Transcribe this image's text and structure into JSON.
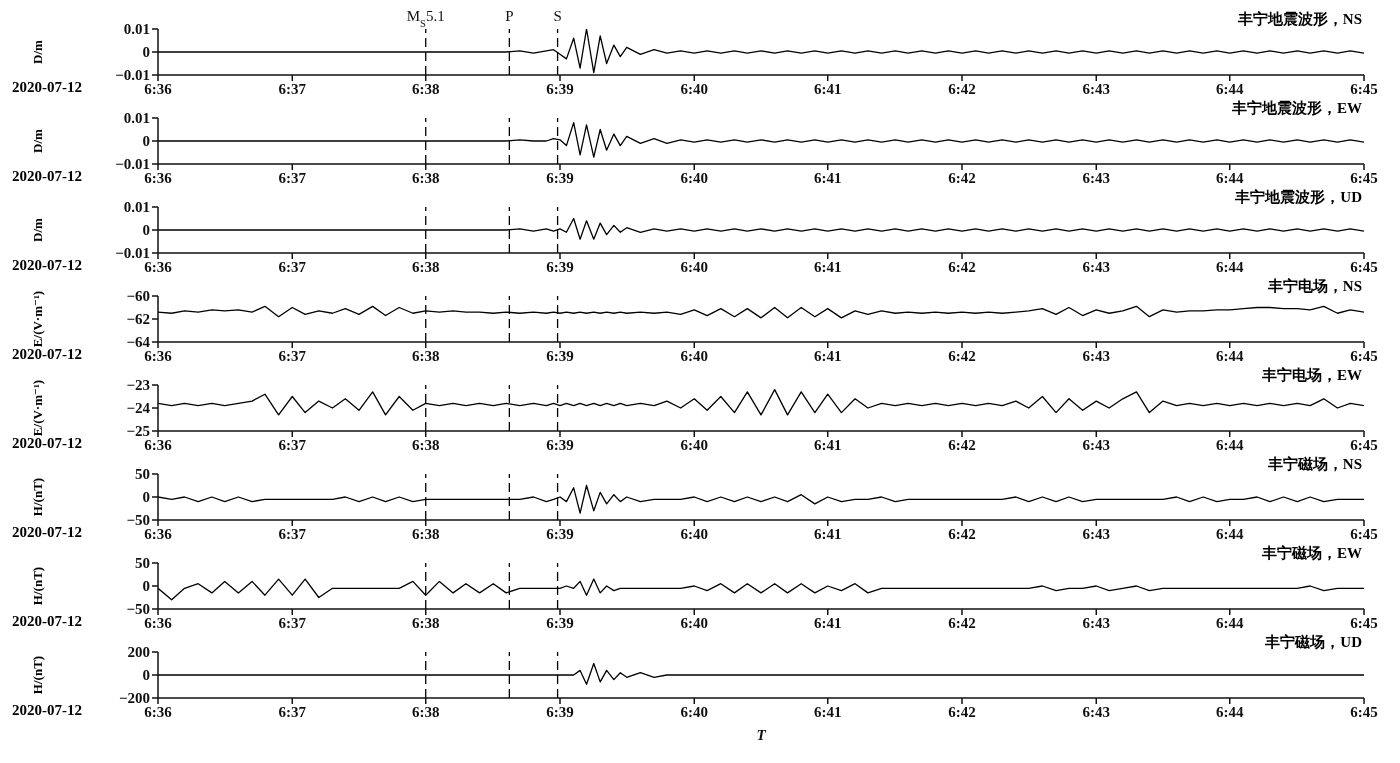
{
  "chart_data": [
    {
      "type": "line",
      "title": "丰宁地震波形，NS",
      "ylabel": "D/m",
      "annotations": [
        "2020-07-12"
      ],
      "x": [
        6.6,
        6.6017,
        6.6033,
        6.605,
        6.6067,
        6.6083,
        6.61,
        6.6117,
        6.6133,
        6.615,
        6.6167,
        6.6183,
        6.62,
        6.6217,
        6.6233,
        6.625,
        6.6267,
        6.6283,
        6.63,
        6.6317,
        6.6333,
        6.635,
        6.6367,
        6.6383,
        6.64,
        6.6417,
        6.6433,
        6.645,
        6.6467,
        6.6483,
        6.6492,
        6.65,
        6.6508,
        6.6517,
        6.6525,
        6.6533,
        6.6542,
        6.655,
        6.6558,
        6.6567,
        6.6575,
        6.6583,
        6.66,
        6.6617,
        6.6633,
        6.665,
        6.6667,
        6.6683,
        6.67,
        6.6717,
        6.6733,
        6.675,
        6.6767,
        6.6783,
        6.68,
        6.6817,
        6.6833,
        6.685,
        6.6867,
        6.6883,
        6.69,
        6.6917,
        6.6933,
        6.695,
        6.6967,
        6.6983,
        6.7,
        6.7017,
        6.7033,
        6.705,
        6.7067,
        6.7083,
        6.71,
        6.7117,
        6.7133,
        6.715,
        6.7167,
        6.7183,
        6.72,
        6.7217,
        6.7233,
        6.725,
        6.7267,
        6.7283,
        6.73,
        6.7317,
        6.7333,
        6.735,
        6.7367,
        6.7383,
        6.74,
        6.7417,
        6.7433,
        6.745,
        6.7467,
        6.7483,
        6.75
      ],
      "series": [
        {
          "color": "#000000",
          "values": [
            0,
            0,
            0,
            0,
            0,
            0,
            0,
            0,
            0,
            0,
            0,
            0,
            0,
            0,
            0,
            0,
            0,
            0,
            0,
            0,
            0,
            0,
            0,
            0,
            0,
            0,
            0,
            0.0005,
            -0.0005,
            0.0005,
            0.001,
            -0.001,
            -0.003,
            0.006,
            -0.007,
            0.01,
            -0.009,
            0.007,
            -0.005,
            0.003,
            -0.002,
            0.002,
            -0.001,
            0.001,
            -0.0005,
            0.0005,
            -0.0005,
            0.0005,
            -0.0005,
            0.0005,
            -0.0005,
            0.0005,
            -0.0005,
            0.0005,
            -0.0005,
            0.0005,
            -0.0005,
            0.0005,
            -0.0005,
            0.0005,
            -0.0005,
            0.0005,
            -0.0005,
            0.0005,
            -0.0005,
            0.0005,
            -0.0005,
            0.0005,
            -0.0005,
            0.0005,
            -0.0005,
            0.0005,
            -0.0005,
            0.0005,
            -0.0005,
            0.0005,
            -0.0005,
            0.0005,
            -0.0005,
            0.0005,
            -0.0005,
            0.0005,
            -0.0005,
            0.0005,
            -0.0005,
            0.0005,
            -0.0005,
            0.0005,
            -0.0005,
            0.0005,
            -0.0005,
            0.0005,
            -0.0005,
            0.0005,
            -0.0005,
            0.0005,
            -0.0005
          ]
        }
      ],
      "xlim": [
        6.6,
        6.75
      ],
      "xticks": [
        {
          "value": 6.6,
          "label": "6:36"
        },
        {
          "value": 6.6167,
          "label": "6:37"
        },
        {
          "value": 6.6333,
          "label": "6:38"
        },
        {
          "value": 6.65,
          "label": "6:39"
        },
        {
          "value": 6.6667,
          "label": "6:40"
        },
        {
          "value": 6.6833,
          "label": "6:41"
        },
        {
          "value": 6.7,
          "label": "6:42"
        },
        {
          "value": 6.7167,
          "label": "6:43"
        },
        {
          "value": 6.7333,
          "label": "6:44"
        },
        {
          "value": 6.75,
          "label": "6:45"
        }
      ],
      "ylim": [
        -0.01,
        0.01
      ],
      "yticks": [
        -0.01,
        0,
        0.01
      ],
      "ref_lines": [
        {
          "axis": "x",
          "value": 6.6333,
          "label": "M$_{S}$5.1",
          "color": "#000000",
          "line_style": "dashed"
        },
        {
          "axis": "x",
          "value": 6.6437,
          "label": "P",
          "color": "#000000",
          "line_style": "dashed"
        },
        {
          "axis": "x",
          "value": 6.6497,
          "label": "S",
          "color": "#000000",
          "line_style": "dashed"
        }
      ]
    },
    {
      "type": "line",
      "title": "丰宁地震波形，EW",
      "ylabel": "D/m",
      "annotations": [
        "2020-07-12"
      ],
      "x": [
        6.6,
        6.6017,
        6.6033,
        6.605,
        6.6067,
        6.6083,
        6.61,
        6.6117,
        6.6133,
        6.615,
        6.6167,
        6.6183,
        6.62,
        6.6217,
        6.6233,
        6.625,
        6.6267,
        6.6283,
        6.63,
        6.6317,
        6.6333,
        6.635,
        6.6367,
        6.6383,
        6.64,
        6.6417,
        6.6433,
        6.645,
        6.6467,
        6.6483,
        6.6492,
        6.65,
        6.6508,
        6.6517,
        6.6525,
        6.6533,
        6.6542,
        6.655,
        6.6558,
        6.6567,
        6.6575,
        6.6583,
        6.66,
        6.6617,
        6.6633,
        6.665,
        6.6667,
        6.6683,
        6.67,
        6.6717,
        6.6733,
        6.675,
        6.6767,
        6.6783,
        6.68,
        6.6817,
        6.6833,
        6.685,
        6.6867,
        6.6883,
        6.69,
        6.6917,
        6.6933,
        6.695,
        6.6967,
        6.6983,
        6.7,
        6.7017,
        6.7033,
        6.705,
        6.7067,
        6.7083,
        6.71,
        6.7117,
        6.7133,
        6.715,
        6.7167,
        6.7183,
        6.72,
        6.7217,
        6.7233,
        6.725,
        6.7267,
        6.7283,
        6.73,
        6.7317,
        6.7333,
        6.735,
        6.7367,
        6.7383,
        6.74,
        6.7417,
        6.7433,
        6.745,
        6.7467,
        6.7483,
        6.75
      ],
      "series": [
        {
          "color": "#000000",
          "values": [
            0,
            0,
            0,
            0,
            0,
            0,
            0,
            0,
            0,
            0,
            0,
            0,
            0,
            0,
            0,
            0,
            0,
            0,
            0,
            0,
            0,
            0,
            0,
            0,
            0,
            0,
            0,
            0.0005,
            0,
            0,
            0.001,
            0.0005,
            -0.002,
            0.008,
            -0.006,
            0.007,
            -0.007,
            0.005,
            -0.004,
            0.003,
            -0.002,
            0.002,
            -0.001,
            0.001,
            -0.001,
            0.0005,
            -0.0005,
            0.0005,
            -0.0005,
            0.0005,
            -0.0005,
            0.0005,
            -0.0005,
            0.0005,
            -0.0005,
            0.0005,
            -0.0005,
            0.0005,
            -0.0005,
            0.0005,
            -0.0005,
            0.0005,
            -0.0005,
            0.0005,
            -0.0005,
            0.0005,
            -0.0005,
            0.0005,
            -0.0005,
            0.0005,
            -0.0005,
            0.0005,
            -0.0005,
            0.0005,
            -0.0005,
            0.0005,
            -0.0005,
            0.0005,
            -0.0005,
            0.0005,
            -0.0005,
            0.0005,
            -0.0005,
            0.0005,
            -0.0005,
            0.0005,
            -0.0005,
            0.0005,
            -0.0005,
            0.0005,
            -0.0005,
            0.0005,
            -0.0005,
            0.0005,
            -0.0005,
            0.0005,
            -0.0005
          ]
        }
      ],
      "xlim": [
        6.6,
        6.75
      ],
      "xticks": [
        {
          "value": 6.6,
          "label": "6:36"
        },
        {
          "value": 6.6167,
          "label": "6:37"
        },
        {
          "value": 6.6333,
          "label": "6:38"
        },
        {
          "value": 6.65,
          "label": "6:39"
        },
        {
          "value": 6.6667,
          "label": "6:40"
        },
        {
          "value": 6.6833,
          "label": "6:41"
        },
        {
          "value": 6.7,
          "label": "6:42"
        },
        {
          "value": 6.7167,
          "label": "6:43"
        },
        {
          "value": 6.7333,
          "label": "6:44"
        },
        {
          "value": 6.75,
          "label": "6:45"
        }
      ],
      "ylim": [
        -0.01,
        0.01
      ],
      "yticks": [
        -0.01,
        0,
        0.01
      ],
      "ref_lines": [
        {
          "axis": "x",
          "value": 6.6333,
          "color": "#000000",
          "line_style": "dashed"
        },
        {
          "axis": "x",
          "value": 6.6437,
          "color": "#000000",
          "line_style": "dashed"
        },
        {
          "axis": "x",
          "value": 6.6497,
          "color": "#000000",
          "line_style": "dashed"
        }
      ]
    },
    {
      "type": "line",
      "title": "丰宁地震波形，UD",
      "ylabel": "D/m",
      "annotations": [
        "2020-07-12"
      ],
      "x": [
        6.6,
        6.6017,
        6.6033,
        6.605,
        6.6067,
        6.6083,
        6.61,
        6.6117,
        6.6133,
        6.615,
        6.6167,
        6.6183,
        6.62,
        6.6217,
        6.6233,
        6.625,
        6.6267,
        6.6283,
        6.63,
        6.6317,
        6.6333,
        6.635,
        6.6367,
        6.6383,
        6.64,
        6.6417,
        6.6433,
        6.645,
        6.6467,
        6.6483,
        6.6492,
        6.65,
        6.6508,
        6.6517,
        6.6525,
        6.6533,
        6.6542,
        6.655,
        6.6558,
        6.6567,
        6.6575,
        6.6583,
        6.66,
        6.6617,
        6.6633,
        6.665,
        6.6667,
        6.6683,
        6.67,
        6.6717,
        6.6733,
        6.675,
        6.6767,
        6.6783,
        6.68,
        6.6817,
        6.6833,
        6.685,
        6.6867,
        6.6883,
        6.69,
        6.6917,
        6.6933,
        6.695,
        6.6967,
        6.6983,
        6.7,
        6.7017,
        6.7033,
        6.705,
        6.7067,
        6.7083,
        6.71,
        6.7117,
        6.7133,
        6.715,
        6.7167,
        6.7183,
        6.72,
        6.7217,
        6.7233,
        6.725,
        6.7267,
        6.7283,
        6.73,
        6.7317,
        6.7333,
        6.735,
        6.7367,
        6.7383,
        6.74,
        6.7417,
        6.7433,
        6.745,
        6.7467,
        6.7483,
        6.75
      ],
      "series": [
        {
          "color": "#000000",
          "values": [
            0,
            0,
            0,
            0,
            0,
            0,
            0,
            0,
            0,
            0,
            0,
            0,
            0,
            0,
            0,
            0,
            0,
            0,
            0,
            0,
            0,
            0,
            0,
            0,
            0,
            0,
            0,
            0.0005,
            -0.0005,
            0.0005,
            -0.0005,
            0.0005,
            -0.001,
            0.005,
            -0.004,
            0.004,
            -0.004,
            0.003,
            -0.002,
            0.002,
            -0.001,
            0.001,
            -0.001,
            0.0005,
            -0.0005,
            0.0005,
            -0.0005,
            0.0005,
            -0.0005,
            0.0005,
            -0.0005,
            0.0005,
            -0.0005,
            0.0005,
            -0.0005,
            0.0005,
            -0.0005,
            0.0005,
            -0.0005,
            0.0005,
            -0.0005,
            0.0005,
            -0.0005,
            0.0005,
            -0.0005,
            0.0005,
            -0.0005,
            0.0005,
            -0.0005,
            0.0005,
            -0.0005,
            0.0005,
            -0.0005,
            0.0005,
            -0.0005,
            0.0005,
            -0.0005,
            0.0005,
            -0.0005,
            0.0005,
            -0.0005,
            0.0005,
            -0.0005,
            0.0005,
            -0.0005,
            0.0005,
            -0.0005,
            0.0005,
            -0.0005,
            0.0005,
            -0.0005,
            0.0005,
            -0.0005,
            0.0005,
            -0.0005,
            0.0005,
            -0.0005
          ]
        }
      ],
      "xlim": [
        6.6,
        6.75
      ],
      "xticks": [
        {
          "value": 6.6,
          "label": "6:36"
        },
        {
          "value": 6.6167,
          "label": "6:37"
        },
        {
          "value": 6.6333,
          "label": "6:38"
        },
        {
          "value": 6.65,
          "label": "6:39"
        },
        {
          "value": 6.6667,
          "label": "6:40"
        },
        {
          "value": 6.6833,
          "label": "6:41"
        },
        {
          "value": 6.7,
          "label": "6:42"
        },
        {
          "value": 6.7167,
          "label": "6:43"
        },
        {
          "value": 6.7333,
          "label": "6:44"
        },
        {
          "value": 6.75,
          "label": "6:45"
        }
      ],
      "ylim": [
        -0.01,
        0.01
      ],
      "yticks": [
        -0.01,
        0,
        0.01
      ],
      "ref_lines": [
        {
          "axis": "x",
          "value": 6.6333,
          "color": "#000000",
          "line_style": "dashed"
        },
        {
          "axis": "x",
          "value": 6.6437,
          "color": "#000000",
          "line_style": "dashed"
        },
        {
          "axis": "x",
          "value": 6.6497,
          "color": "#000000",
          "line_style": "dashed"
        }
      ]
    },
    {
      "type": "line",
      "title": "丰宁电场，NS",
      "ylabel": "E/(V·m⁻¹)",
      "annotations": [
        "2020-07-12"
      ],
      "x": [
        6.6,
        6.6017,
        6.6033,
        6.605,
        6.6067,
        6.6083,
        6.61,
        6.6117,
        6.6133,
        6.615,
        6.6167,
        6.6183,
        6.62,
        6.6217,
        6.6233,
        6.625,
        6.6267,
        6.6283,
        6.63,
        6.6317,
        6.6333,
        6.635,
        6.6367,
        6.6383,
        6.64,
        6.6417,
        6.6433,
        6.645,
        6.6467,
        6.6483,
        6.6492,
        6.65,
        6.6508,
        6.6517,
        6.6525,
        6.6533,
        6.6542,
        6.655,
        6.6558,
        6.6567,
        6.6575,
        6.6583,
        6.66,
        6.6617,
        6.6633,
        6.665,
        6.6667,
        6.6683,
        6.67,
        6.6717,
        6.6733,
        6.675,
        6.6767,
        6.6783,
        6.68,
        6.6817,
        6.6833,
        6.685,
        6.6867,
        6.6883,
        6.69,
        6.6917,
        6.6933,
        6.695,
        6.6967,
        6.6983,
        6.7,
        6.7017,
        6.7033,
        6.705,
        6.7067,
        6.7083,
        6.71,
        6.7117,
        6.7133,
        6.715,
        6.7167,
        6.7183,
        6.72,
        6.7217,
        6.7233,
        6.725,
        6.7267,
        6.7283,
        6.73,
        6.7317,
        6.7333,
        6.735,
        6.7367,
        6.7383,
        6.74,
        6.7417,
        6.7433,
        6.745,
        6.7467,
        6.7483,
        6.75
      ],
      "series": [
        {
          "color": "#000000",
          "values": [
            -61.4,
            -61.5,
            -61.3,
            -61.4,
            -61.2,
            -61.3,
            -61.2,
            -61.4,
            -60.9,
            -61.8,
            -61.0,
            -61.6,
            -61.3,
            -61.5,
            -61.1,
            -61.6,
            -60.9,
            -61.7,
            -61.0,
            -61.5,
            -61.3,
            -61.4,
            -61.3,
            -61.4,
            -61.4,
            -61.5,
            -61.4,
            -61.5,
            -61.4,
            -61.5,
            -61.4,
            -61.5,
            -61.4,
            -61.5,
            -61.4,
            -61.5,
            -61.4,
            -61.5,
            -61.4,
            -61.5,
            -61.4,
            -61.5,
            -61.4,
            -61.5,
            -61.4,
            -61.6,
            -61.2,
            -61.7,
            -61.1,
            -61.8,
            -61.1,
            -61.9,
            -61.0,
            -61.9,
            -61.0,
            -61.8,
            -61.1,
            -61.9,
            -61.3,
            -61.6,
            -61.3,
            -61.5,
            -61.4,
            -61.5,
            -61.4,
            -61.5,
            -61.4,
            -61.5,
            -61.4,
            -61.5,
            -61.4,
            -61.3,
            -61.1,
            -61.6,
            -61.0,
            -61.7,
            -61.2,
            -61.5,
            -61.3,
            -60.9,
            -61.8,
            -61.2,
            -61.4,
            -61.3,
            -61.3,
            -61.2,
            -61.2,
            -61.1,
            -61.0,
            -61.0,
            -61.1,
            -61.1,
            -61.2,
            -60.9,
            -61.5,
            -61.2,
            -61.4
          ]
        }
      ],
      "xlim": [
        6.6,
        6.75
      ],
      "xticks": [
        {
          "value": 6.6,
          "label": "6:36"
        },
        {
          "value": 6.6167,
          "label": "6:37"
        },
        {
          "value": 6.6333,
          "label": "6:38"
        },
        {
          "value": 6.65,
          "label": "6:39"
        },
        {
          "value": 6.6667,
          "label": "6:40"
        },
        {
          "value": 6.6833,
          "label": "6:41"
        },
        {
          "value": 6.7,
          "label": "6:42"
        },
        {
          "value": 6.7167,
          "label": "6:43"
        },
        {
          "value": 6.7333,
          "label": "6:44"
        },
        {
          "value": 6.75,
          "label": "6:45"
        }
      ],
      "ylim": [
        -64,
        -60
      ],
      "yticks": [
        -64,
        -62,
        -60
      ],
      "ref_lines": [
        {
          "axis": "x",
          "value": 6.6333,
          "color": "#000000",
          "line_style": "dashed"
        },
        {
          "axis": "x",
          "value": 6.6437,
          "color": "#000000",
          "line_style": "dashed"
        },
        {
          "axis": "x",
          "value": 6.6497,
          "color": "#000000",
          "line_style": "dashed"
        }
      ]
    },
    {
      "type": "line",
      "title": "丰宁电场，EW",
      "ylabel": "E/(V·m⁻¹)",
      "annotations": [
        "2020-07-12"
      ],
      "x": [
        6.6,
        6.6017,
        6.6033,
        6.605,
        6.6067,
        6.6083,
        6.61,
        6.6117,
        6.6133,
        6.615,
        6.6167,
        6.6183,
        6.62,
        6.6217,
        6.6233,
        6.625,
        6.6267,
        6.6283,
        6.63,
        6.6317,
        6.6333,
        6.635,
        6.6367,
        6.6383,
        6.64,
        6.6417,
        6.6433,
        6.645,
        6.6467,
        6.6483,
        6.6492,
        6.65,
        6.6508,
        6.6517,
        6.6525,
        6.6533,
        6.6542,
        6.655,
        6.6558,
        6.6567,
        6.6575,
        6.6583,
        6.66,
        6.6617,
        6.6633,
        6.665,
        6.6667,
        6.6683,
        6.67,
        6.6717,
        6.6733,
        6.675,
        6.6767,
        6.6783,
        6.68,
        6.6817,
        6.6833,
        6.685,
        6.6867,
        6.6883,
        6.69,
        6.6917,
        6.6933,
        6.695,
        6.6967,
        6.6983,
        6.7,
        6.7017,
        6.7033,
        6.705,
        6.7067,
        6.7083,
        6.71,
        6.7117,
        6.7133,
        6.715,
        6.7167,
        6.7183,
        6.72,
        6.7217,
        6.7233,
        6.725,
        6.7267,
        6.7283,
        6.73,
        6.7317,
        6.7333,
        6.735,
        6.7367,
        6.7383,
        6.74,
        6.7417,
        6.7433,
        6.745,
        6.7467,
        6.7483,
        6.75
      ],
      "series": [
        {
          "color": "#000000",
          "values": [
            -23.8,
            -23.9,
            -23.8,
            -23.9,
            -23.8,
            -23.9,
            -23.8,
            -23.7,
            -23.4,
            -24.3,
            -23.5,
            -24.2,
            -23.7,
            -24.0,
            -23.6,
            -24.1,
            -23.3,
            -24.3,
            -23.5,
            -24.1,
            -23.8,
            -23.9,
            -23.8,
            -23.9,
            -23.8,
            -23.9,
            -23.8,
            -23.9,
            -23.8,
            -23.9,
            -23.8,
            -23.9,
            -23.8,
            -23.9,
            -23.8,
            -23.9,
            -23.8,
            -23.9,
            -23.8,
            -23.9,
            -23.8,
            -23.9,
            -23.8,
            -23.9,
            -23.7,
            -24.0,
            -23.6,
            -24.1,
            -23.5,
            -24.2,
            -23.3,
            -24.3,
            -23.2,
            -24.3,
            -23.3,
            -24.2,
            -23.4,
            -24.2,
            -23.6,
            -24.0,
            -23.8,
            -23.9,
            -23.8,
            -23.9,
            -23.8,
            -23.9,
            -23.8,
            -23.9,
            -23.8,
            -23.9,
            -23.7,
            -24.0,
            -23.5,
            -24.2,
            -23.6,
            -24.1,
            -23.7,
            -24.0,
            -23.6,
            -23.3,
            -24.2,
            -23.7,
            -23.9,
            -23.8,
            -23.9,
            -23.8,
            -23.9,
            -23.8,
            -23.9,
            -23.8,
            -23.9,
            -23.8,
            -23.9,
            -23.6,
            -24.0,
            -23.8,
            -23.9
          ]
        }
      ],
      "xlim": [
        6.6,
        6.75
      ],
      "xticks": [
        {
          "value": 6.6,
          "label": "6:36"
        },
        {
          "value": 6.6167,
          "label": "6:37"
        },
        {
          "value": 6.6333,
          "label": "6:38"
        },
        {
          "value": 6.65,
          "label": "6:39"
        },
        {
          "value": 6.6667,
          "label": "6:40"
        },
        {
          "value": 6.6833,
          "label": "6:41"
        },
        {
          "value": 6.7,
          "label": "6:42"
        },
        {
          "value": 6.7167,
          "label": "6:43"
        },
        {
          "value": 6.7333,
          "label": "6:44"
        },
        {
          "value": 6.75,
          "label": "6:45"
        }
      ],
      "ylim": [
        -25,
        -23
      ],
      "yticks": [
        -25,
        -24,
        -23
      ],
      "ref_lines": [
        {
          "axis": "x",
          "value": 6.6333,
          "color": "#000000",
          "line_style": "dashed"
        },
        {
          "axis": "x",
          "value": 6.6437,
          "color": "#000000",
          "line_style": "dashed"
        },
        {
          "axis": "x",
          "value": 6.6497,
          "color": "#000000",
          "line_style": "dashed"
        }
      ]
    },
    {
      "type": "line",
      "title": "丰宁磁场，NS",
      "ylabel": "H/(nT)",
      "annotations": [
        "2020-07-12"
      ],
      "x": [
        6.6,
        6.6017,
        6.6033,
        6.605,
        6.6067,
        6.6083,
        6.61,
        6.6117,
        6.6133,
        6.615,
        6.6167,
        6.6183,
        6.62,
        6.6217,
        6.6233,
        6.625,
        6.6267,
        6.6283,
        6.63,
        6.6317,
        6.6333,
        6.635,
        6.6367,
        6.6383,
        6.64,
        6.6417,
        6.6433,
        6.645,
        6.6467,
        6.6483,
        6.6492,
        6.65,
        6.6508,
        6.6517,
        6.6525,
        6.6533,
        6.6542,
        6.655,
        6.6558,
        6.6567,
        6.6575,
        6.6583,
        6.66,
        6.6617,
        6.6633,
        6.665,
        6.6667,
        6.6683,
        6.67,
        6.6717,
        6.6733,
        6.675,
        6.6767,
        6.6783,
        6.68,
        6.6817,
        6.6833,
        6.685,
        6.6867,
        6.6883,
        6.69,
        6.6917,
        6.6933,
        6.695,
        6.6967,
        6.6983,
        6.7,
        6.7017,
        6.7033,
        6.705,
        6.7067,
        6.7083,
        6.71,
        6.7117,
        6.7133,
        6.715,
        6.7167,
        6.7183,
        6.72,
        6.7217,
        6.7233,
        6.725,
        6.7267,
        6.7283,
        6.73,
        6.7317,
        6.7333,
        6.735,
        6.7367,
        6.7383,
        6.74,
        6.7417,
        6.7433,
        6.745,
        6.7467,
        6.7483,
        6.75
      ],
      "series": [
        {
          "color": "#000000",
          "values": [
            0,
            -5,
            0,
            -10,
            0,
            -10,
            0,
            -10,
            -5,
            -5,
            -5,
            -5,
            -5,
            -5,
            0,
            -10,
            0,
            -10,
            0,
            -10,
            -5,
            -5,
            -5,
            -5,
            -5,
            -5,
            -5,
            -5,
            0,
            -10,
            -5,
            0,
            -10,
            20,
            -35,
            25,
            -30,
            10,
            -15,
            5,
            -10,
            0,
            -10,
            -5,
            -5,
            -5,
            0,
            -10,
            0,
            -10,
            0,
            -10,
            0,
            -10,
            5,
            -15,
            0,
            -10,
            -5,
            -5,
            0,
            -10,
            -5,
            -5,
            -5,
            -5,
            -5,
            -5,
            -5,
            -5,
            0,
            -10,
            0,
            -10,
            0,
            -10,
            -5,
            -5,
            -5,
            -5,
            -5,
            -5,
            0,
            -10,
            0,
            -10,
            -5,
            -5,
            0,
            -10,
            0,
            -10,
            0,
            -10,
            -5,
            -5,
            -5
          ]
        }
      ],
      "xlim": [
        6.6,
        6.75
      ],
      "xticks": [
        {
          "value": 6.6,
          "label": "6:36"
        },
        {
          "value": 6.6167,
          "label": "6:37"
        },
        {
          "value": 6.6333,
          "label": "6:38"
        },
        {
          "value": 6.65,
          "label": "6:39"
        },
        {
          "value": 6.6667,
          "label": "6:40"
        },
        {
          "value": 6.6833,
          "label": "6:41"
        },
        {
          "value": 6.7,
          "label": "6:42"
        },
        {
          "value": 6.7167,
          "label": "6:43"
        },
        {
          "value": 6.7333,
          "label": "6:44"
        },
        {
          "value": 6.75,
          "label": "6:45"
        }
      ],
      "ylim": [
        -50,
        50
      ],
      "yticks": [
        -50,
        0,
        50
      ],
      "ref_lines": [
        {
          "axis": "x",
          "value": 6.6333,
          "color": "#000000",
          "line_style": "dashed"
        },
        {
          "axis": "x",
          "value": 6.6437,
          "color": "#000000",
          "line_style": "dashed"
        },
        {
          "axis": "x",
          "value": 6.6497,
          "color": "#000000",
          "line_style": "dashed"
        }
      ]
    },
    {
      "type": "line",
      "title": "丰宁磁场，EW",
      "ylabel": "H/(nT)",
      "annotations": [
        "2020-07-12"
      ],
      "x": [
        6.6,
        6.6017,
        6.6033,
        6.605,
        6.6067,
        6.6083,
        6.61,
        6.6117,
        6.6133,
        6.615,
        6.6167,
        6.6183,
        6.62,
        6.6217,
        6.6233,
        6.625,
        6.6267,
        6.6283,
        6.63,
        6.6317,
        6.6333,
        6.635,
        6.6367,
        6.6383,
        6.64,
        6.6417,
        6.6433,
        6.645,
        6.6467,
        6.6483,
        6.6492,
        6.65,
        6.6508,
        6.6517,
        6.6525,
        6.6533,
        6.6542,
        6.655,
        6.6558,
        6.6567,
        6.6575,
        6.6583,
        6.66,
        6.6617,
        6.6633,
        6.665,
        6.6667,
        6.6683,
        6.67,
        6.6717,
        6.6733,
        6.675,
        6.6767,
        6.6783,
        6.68,
        6.6817,
        6.6833,
        6.685,
        6.6867,
        6.6883,
        6.69,
        6.6917,
        6.6933,
        6.695,
        6.6967,
        6.6983,
        6.7,
        6.7017,
        6.7033,
        6.705,
        6.7067,
        6.7083,
        6.71,
        6.7117,
        6.7133,
        6.715,
        6.7167,
        6.7183,
        6.72,
        6.7217,
        6.7233,
        6.725,
        6.7267,
        6.7283,
        6.73,
        6.7317,
        6.7333,
        6.735,
        6.7367,
        6.7383,
        6.74,
        6.7417,
        6.7433,
        6.745,
        6.7467,
        6.7483,
        6.75
      ],
      "series": [
        {
          "color": "#000000",
          "values": [
            -5,
            -30,
            -5,
            5,
            -15,
            10,
            -15,
            10,
            -20,
            15,
            -20,
            15,
            -25,
            -5,
            -5,
            -5,
            -5,
            -5,
            -5,
            10,
            -20,
            10,
            -15,
            5,
            -15,
            5,
            -15,
            -5,
            -5,
            -5,
            -5,
            -5,
            0,
            -5,
            10,
            -20,
            15,
            -15,
            0,
            -10,
            -5,
            -5,
            -5,
            -5,
            -5,
            -5,
            0,
            -10,
            5,
            -15,
            5,
            -15,
            5,
            -15,
            5,
            -15,
            0,
            -10,
            5,
            -15,
            -5,
            -5,
            -5,
            -5,
            -5,
            -5,
            -5,
            -5,
            -5,
            -5,
            -5,
            -5,
            0,
            -10,
            -5,
            -5,
            0,
            -10,
            -5,
            0,
            -10,
            -5,
            -5,
            -5,
            -5,
            -5,
            -5,
            -5,
            -5,
            -5,
            -5,
            -5,
            0,
            -10,
            -5,
            -5,
            -5
          ]
        }
      ],
      "xlim": [
        6.6,
        6.75
      ],
      "xticks": [
        {
          "value": 6.6,
          "label": "6:36"
        },
        {
          "value": 6.6167,
          "label": "6:37"
        },
        {
          "value": 6.6333,
          "label": "6:38"
        },
        {
          "value": 6.65,
          "label": "6:39"
        },
        {
          "value": 6.6667,
          "label": "6:40"
        },
        {
          "value": 6.6833,
          "label": "6:41"
        },
        {
          "value": 6.7,
          "label": "6:42"
        },
        {
          "value": 6.7167,
          "label": "6:43"
        },
        {
          "value": 6.7333,
          "label": "6:44"
        },
        {
          "value": 6.75,
          "label": "6:45"
        }
      ],
      "ylim": [
        -50,
        50
      ],
      "yticks": [
        -50,
        0,
        50
      ],
      "ref_lines": [
        {
          "axis": "x",
          "value": 6.6333,
          "color": "#000000",
          "line_style": "dashed"
        },
        {
          "axis": "x",
          "value": 6.6437,
          "color": "#000000",
          "line_style": "dashed"
        },
        {
          "axis": "x",
          "value": 6.6497,
          "color": "#000000",
          "line_style": "dashed"
        }
      ]
    },
    {
      "type": "line",
      "title": "丰宁磁场，UD",
      "ylabel": "H/(nT)",
      "xlabel": "T",
      "annotations": [
        "2020-07-12"
      ],
      "x": [
        6.6,
        6.6017,
        6.6033,
        6.605,
        6.6067,
        6.6083,
        6.61,
        6.6117,
        6.6133,
        6.615,
        6.6167,
        6.6183,
        6.62,
        6.6217,
        6.6233,
        6.625,
        6.6267,
        6.6283,
        6.63,
        6.6317,
        6.6333,
        6.635,
        6.6367,
        6.6383,
        6.64,
        6.6417,
        6.6433,
        6.645,
        6.6467,
        6.6483,
        6.6492,
        6.65,
        6.6508,
        6.6517,
        6.6525,
        6.6533,
        6.6542,
        6.655,
        6.6558,
        6.6567,
        6.6575,
        6.6583,
        6.66,
        6.6617,
        6.6633,
        6.665,
        6.6667,
        6.6683,
        6.67,
        6.6717,
        6.6733,
        6.675,
        6.6767,
        6.6783,
        6.68,
        6.6817,
        6.6833,
        6.685,
        6.6867,
        6.6883,
        6.69,
        6.6917,
        6.6933,
        6.695,
        6.6967,
        6.6983,
        6.7,
        6.7017,
        6.7033,
        6.705,
        6.7067,
        6.7083,
        6.71,
        6.7117,
        6.7133,
        6.715,
        6.7167,
        6.7183,
        6.72,
        6.7217,
        6.7233,
        6.725,
        6.7267,
        6.7283,
        6.73,
        6.7317,
        6.7333,
        6.735,
        6.7367,
        6.7383,
        6.74,
        6.7417,
        6.7433,
        6.745,
        6.7467,
        6.7483,
        6.75
      ],
      "series": [
        {
          "color": "#000000",
          "values": [
            0,
            0,
            0,
            0,
            0,
            0,
            0,
            0,
            0,
            0,
            0,
            0,
            0,
            0,
            0,
            0,
            0,
            0,
            0,
            0,
            0,
            0,
            0,
            0,
            0,
            0,
            0,
            0,
            0,
            0,
            0,
            0,
            0,
            0,
            40,
            -80,
            100,
            -60,
            40,
            -40,
            20,
            -20,
            20,
            -20,
            0,
            0,
            0,
            0,
            0,
            0,
            0,
            0,
            0,
            0,
            0,
            0,
            0,
            0,
            0,
            0,
            0,
            0,
            0,
            0,
            0,
            0,
            0,
            0,
            0,
            0,
            0,
            0,
            0,
            0,
            0,
            0,
            0,
            0,
            0,
            0,
            0,
            0,
            0,
            0,
            0,
            0,
            0,
            0,
            0,
            0,
            0,
            0,
            0,
            0,
            0,
            0,
            0
          ]
        }
      ],
      "xlim": [
        6.6,
        6.75
      ],
      "xticks": [
        {
          "value": 6.6,
          "label": "6:36"
        },
        {
          "value": 6.6167,
          "label": "6:37"
        },
        {
          "value": 6.6333,
          "label": "6:38"
        },
        {
          "value": 6.65,
          "label": "6:39"
        },
        {
          "value": 6.6667,
          "label": "6:40"
        },
        {
          "value": 6.6833,
          "label": "6:41"
        },
        {
          "value": 6.7,
          "label": "6:42"
        },
        {
          "value": 6.7167,
          "label": "6:43"
        },
        {
          "value": 6.7333,
          "label": "6:44"
        },
        {
          "value": 6.75,
          "label": "6:45"
        }
      ],
      "ylim": [
        -200,
        200
      ],
      "yticks": [
        -200,
        0,
        200
      ],
      "ref_lines": [
        {
          "axis": "x",
          "value": 6.6333,
          "color": "#000000",
          "line_style": "dashed"
        },
        {
          "axis": "x",
          "value": 6.6437,
          "color": "#000000",
          "line_style": "dashed"
        },
        {
          "axis": "x",
          "value": 6.6497,
          "color": "#000000",
          "line_style": "dashed"
        }
      ]
    }
  ]
}
